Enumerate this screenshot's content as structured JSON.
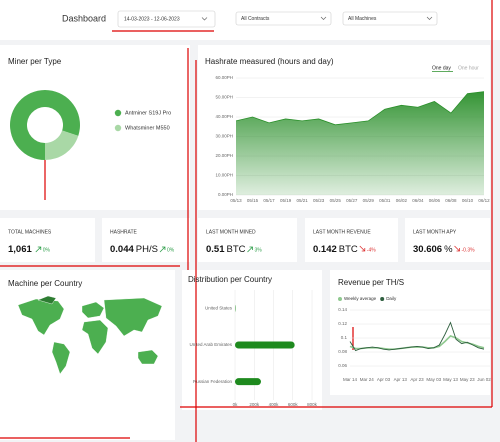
{
  "header": {
    "title": "Dashboard",
    "date_range": "14-03-2023   - 12-06-2023",
    "filters": [
      "All Contracts",
      "All Machines"
    ]
  },
  "kpis": [
    {
      "label": "TOTAL MACHINES",
      "value": "1,061",
      "delta": "0%",
      "trend": "up"
    },
    {
      "label": "HASHRATE",
      "value": "0.044",
      "unit": "PH/S",
      "delta": "0%",
      "trend": "up"
    },
    {
      "label": "LAST MONTH MINED",
      "value": "0.51",
      "unit": "BTC",
      "delta": "3%",
      "trend": "up"
    },
    {
      "label": "LAST MONTH REVENUE",
      "value": "0.142",
      "unit": "BTC",
      "delta": "-4%",
      "trend": "down"
    },
    {
      "label": "LAST MONTH APY",
      "value": "30.606",
      "unit": "%",
      "delta": "-0.3%",
      "trend": "down"
    }
  ],
  "map": {
    "title": "Machine per Country"
  },
  "chart_data": [
    {
      "type": "pie",
      "title": "Miner per Type",
      "categories": [
        "Antminer S19J Pro",
        "Whatsminer M550"
      ],
      "values": [
        80,
        20
      ],
      "colors": [
        "#4caf50",
        "#a9d8a6"
      ]
    },
    {
      "type": "area",
      "title": "Hashrate measured (hours and day)",
      "toggles": [
        "One day",
        "One hour"
      ],
      "categories": [
        "05/13",
        "05/15",
        "05/17",
        "05/19",
        "05/21",
        "05/23",
        "05/25",
        "05/27",
        "05/29",
        "05/31",
        "06/02",
        "06/04",
        "06/06",
        "06/08",
        "06/10",
        "06/12"
      ],
      "values": [
        38,
        40,
        37,
        39,
        38,
        39,
        36,
        37,
        38,
        44,
        46,
        45,
        48,
        42,
        52,
        53
      ],
      "color": "#2a8f2a",
      "ylim": [
        0,
        60
      ],
      "yticks": [
        {
          "value": 0,
          "label": "0.00PH"
        },
        {
          "value": 10,
          "label": "10.00PH"
        },
        {
          "value": 20,
          "label": "20.00PH"
        },
        {
          "value": 30,
          "label": "30.00PH"
        },
        {
          "value": 40,
          "label": "40.00PH"
        },
        {
          "value": 50,
          "label": "50.00PH"
        },
        {
          "value": 60,
          "label": "60.00PH"
        }
      ]
    },
    {
      "type": "hbar",
      "title": "Distribution per Country",
      "categories": [
        "United States",
        "United Arab Emirates",
        "Russian Federation"
      ],
      "values": [
        5000,
        620000,
        270000
      ],
      "color": "#1e8a1e",
      "xlim": [
        0,
        800000
      ],
      "xticks": [
        {
          "value": 0,
          "label": "0k"
        },
        {
          "value": 200000,
          "label": "200k"
        },
        {
          "value": 400000,
          "label": "400k"
        },
        {
          "value": 600000,
          "label": "600k"
        },
        {
          "value": 800000,
          "label": "800k"
        }
      ]
    },
    {
      "type": "line",
      "title": "Revenue per TH/S",
      "categories": [
        "Mar 14",
        null,
        null,
        "Mar 24",
        null,
        null,
        "Apr 03",
        null,
        null,
        "Apr 13",
        null,
        null,
        "Apr 23",
        null,
        null,
        "May 03",
        null,
        null,
        "May 13",
        null,
        null,
        "May 23",
        null,
        null,
        "Jun 02"
      ],
      "series": [
        {
          "name": "Weekly average",
          "color": "#8fc98f",
          "values": [
            0.088,
            0.085,
            0.085,
            0.086,
            0.086,
            0.086,
            0.085,
            0.084,
            0.084,
            0.085,
            0.086,
            0.087,
            0.087,
            0.087,
            0.086,
            0.086,
            0.088,
            0.095,
            0.103,
            0.1,
            0.095,
            0.093,
            0.091,
            0.088,
            0.086
          ]
        },
        {
          "name": "Daily",
          "color": "#2f5f3f",
          "values": [
            0.095,
            0.082,
            0.085,
            0.086,
            0.087,
            0.086,
            0.084,
            0.083,
            0.084,
            0.085,
            0.086,
            0.087,
            0.088,
            0.087,
            0.085,
            0.086,
            0.09,
            0.105,
            0.122,
            0.098,
            0.092,
            0.094,
            0.09,
            0.086,
            0.084
          ]
        }
      ],
      "ylim": [
        0.05,
        0.14
      ],
      "yticks": [
        0.06,
        0.08,
        0.1,
        0.12,
        0.14
      ]
    }
  ]
}
